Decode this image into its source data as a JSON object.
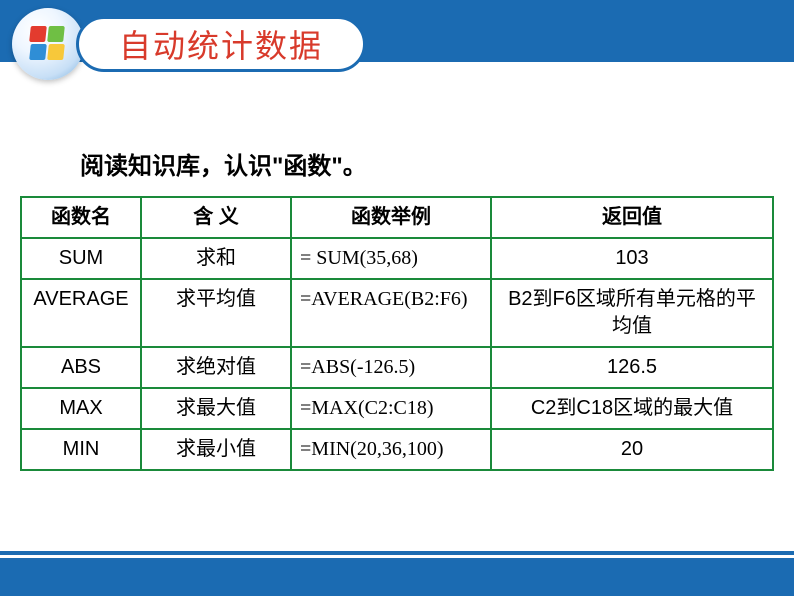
{
  "header": {
    "title": "自动统计数据",
    "title_color": "#d83a2b",
    "bar_color": "#1b6bb2"
  },
  "subtitle": "阅读知识库，认识\"函数\"。",
  "table": {
    "border_color": "#1a8a3a",
    "columns": [
      "函数名",
      "含  义",
      "函数举例",
      "返回值"
    ],
    "rows": [
      {
        "fn": "SUM",
        "mean": "求和",
        "ex": "= SUM(35,68)",
        "ret": "103"
      },
      {
        "fn": "AVERAGE",
        "mean": "求平均值",
        "ex": "=AVERAGE(B2:F6)",
        "ret": "B2到F6区域所有单元格的平均值"
      },
      {
        "fn": "ABS",
        "mean": "求绝对值",
        "ex": "=ABS(-126.5)",
        "ret": "126.5"
      },
      {
        "fn": "MAX",
        "mean": "求最大值",
        "ex": "=MAX(C2:C18)",
        "ret": "C2到C18区域的最大值"
      },
      {
        "fn": "MIN",
        "mean": "求最小值",
        "ex": "=MIN(20,36,100)",
        "ret": "20"
      }
    ]
  }
}
